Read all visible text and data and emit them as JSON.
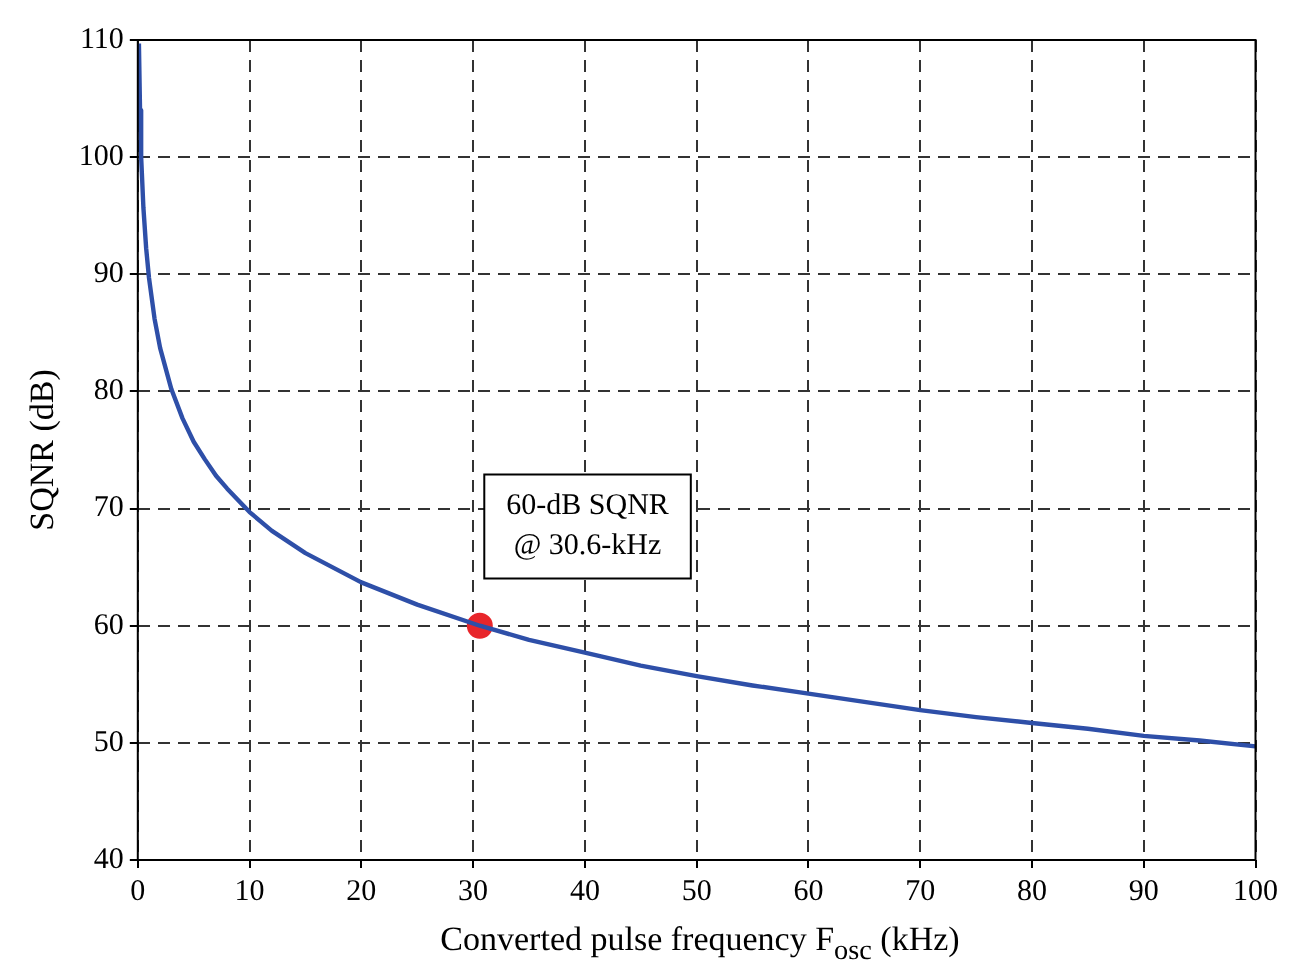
{
  "chart_data": {
    "type": "line",
    "xlabel": "Converted pulse frequency F$_{osc}$ (kHz)",
    "ylabel": "SQNR (dB)",
    "xlim": [
      0,
      100
    ],
    "ylim": [
      40,
      110
    ],
    "xticks": [
      0,
      10,
      20,
      30,
      40,
      50,
      60,
      70,
      80,
      90,
      100
    ],
    "yticks": [
      40,
      50,
      60,
      70,
      80,
      90,
      100,
      110
    ],
    "grid": true,
    "line_style": "solid",
    "marker": "none",
    "series": [
      {
        "type": "line",
        "color": "#2e4fa8",
        "x": [
          0.1,
          0.2,
          0.3,
          0.5,
          0.75,
          1,
          1.5,
          2,
          3,
          4,
          5,
          6,
          7,
          8,
          10,
          12,
          15,
          20,
          25,
          30.6,
          35,
          40,
          45,
          50,
          55,
          60,
          65,
          70,
          75,
          80,
          85,
          90,
          95,
          100
        ],
        "values": [
          109.7,
          104,
          100,
          95.7,
          92.2,
          89.7,
          86.2,
          83.7,
          80.2,
          77.7,
          75.7,
          74.2,
          72.8,
          71.7,
          69.7,
          68.1,
          66.2,
          63.7,
          61.8,
          60,
          58.8,
          57.7,
          56.6,
          55.7,
          54.9,
          54.2,
          53.5,
          52.8,
          52.2,
          51.7,
          51.2,
          50.6,
          50.2,
          49.7
        ]
      },
      {
        "type": "scatter",
        "color": "#e8262b",
        "marker": "circle",
        "x": [
          30.6
        ],
        "values": [
          60
        ]
      }
    ],
    "annotations": [
      "60-dB SQNR\n@ 30.6-kHz"
    ]
  }
}
